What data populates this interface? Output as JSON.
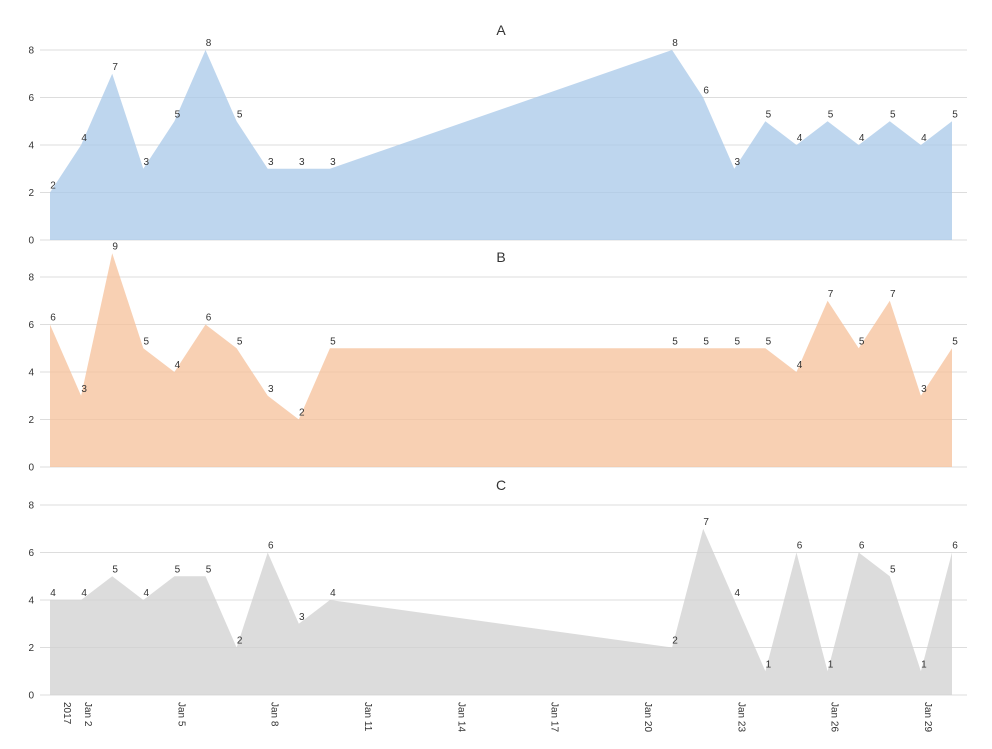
{
  "chart_data": {
    "type": "area",
    "x": [
      "2017-01-01",
      "2017-01-02",
      "2017-01-03",
      "2017-01-04",
      "2017-01-05",
      "2017-01-06",
      "2017-01-07",
      "2017-01-08",
      "2017-01-09",
      "2017-01-10",
      "2017-01-21",
      "2017-01-22",
      "2017-01-23",
      "2017-01-24",
      "2017-01-25",
      "2017-01-26",
      "2017-01-27",
      "2017-01-28",
      "2017-01-29",
      "2017-01-30"
    ],
    "x_tick_labels": [
      {
        "date": "2017-01-01",
        "label": "2017"
      },
      {
        "date": "2017-01-02",
        "label": "Jan 2"
      },
      {
        "date": "2017-01-05",
        "label": "Jan 5"
      },
      {
        "date": "2017-01-08",
        "label": "Jan 8"
      },
      {
        "date": "2017-01-11",
        "label": "Jan 11"
      },
      {
        "date": "2017-01-14",
        "label": "Jan 14"
      },
      {
        "date": "2017-01-17",
        "label": "Jan 17"
      },
      {
        "date": "2017-01-20",
        "label": "Jan 20"
      },
      {
        "date": "2017-01-23",
        "label": "Jan 23"
      },
      {
        "date": "2017-01-26",
        "label": "Jan 26"
      },
      {
        "date": "2017-01-29",
        "label": "Jan 29"
      }
    ],
    "xlim": [
      "2017-01-01",
      "2017-01-30"
    ],
    "ylim": [
      0,
      8
    ],
    "yticks": [
      0,
      2,
      4,
      6,
      8
    ],
    "grid": true,
    "series": [
      {
        "name": "A",
        "color": "#a8c8e8",
        "values": [
          2,
          4,
          7,
          3,
          5,
          8,
          5,
          3,
          3,
          3,
          8,
          6,
          3,
          5,
          4,
          5,
          4,
          5,
          4,
          5
        ]
      },
      {
        "name": "B",
        "color": "#f5c09a",
        "values": [
          6,
          3,
          9,
          5,
          4,
          6,
          5,
          3,
          2,
          5,
          5,
          5,
          5,
          5,
          4,
          7,
          5,
          7,
          3,
          5
        ]
      },
      {
        "name": "C",
        "color": "#d0d0d0",
        "values": [
          4,
          4,
          5,
          4,
          5,
          5,
          2,
          6,
          3,
          4,
          2,
          7,
          4,
          1,
          6,
          1,
          6,
          5,
          1,
          6
        ]
      }
    ]
  }
}
